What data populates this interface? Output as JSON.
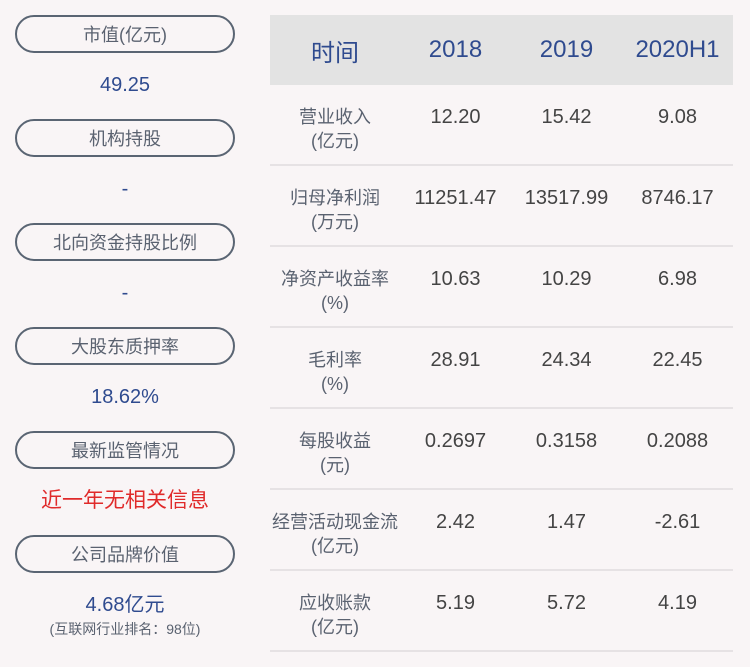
{
  "left_panel": {
    "stats": [
      {
        "label": "市值(亿元)",
        "value": "49.25"
      },
      {
        "label": "机构持股",
        "value": "-"
      },
      {
        "label": "北向资金持股比例",
        "value": "-"
      },
      {
        "label": "大股东质押率",
        "value": "18.62%"
      },
      {
        "label": "最新监管情况",
        "value": "近一年无相关信息"
      },
      {
        "label": "公司品牌价值",
        "value": "4.68亿元",
        "note": "(互联网行业排名：98位)"
      }
    ]
  },
  "table": {
    "headers": [
      "时间",
      "2018",
      "2019",
      "2020H1"
    ],
    "rows": [
      {
        "label": "营业收入",
        "unit": "(亿元)",
        "values": [
          "12.20",
          "15.42",
          "9.08"
        ]
      },
      {
        "label": "归母净利润",
        "unit": "(万元)",
        "values": [
          "11251.47",
          "13517.99",
          "8746.17"
        ]
      },
      {
        "label": "净资产收益率",
        "unit": "(%)",
        "values": [
          "10.63",
          "10.29",
          "6.98"
        ]
      },
      {
        "label": "毛利率",
        "unit": "(%)",
        "values": [
          "28.91",
          "24.34",
          "22.45"
        ]
      },
      {
        "label": "每股收益",
        "unit": "(元)",
        "values": [
          "0.2697",
          "0.3158",
          "0.2088"
        ]
      },
      {
        "label": "经营活动现金流",
        "unit": "(亿元)",
        "values": [
          "2.42",
          "1.47",
          "-2.61"
        ]
      },
      {
        "label": "应收账款",
        "unit": "(亿元)",
        "values": [
          "5.19",
          "5.72",
          "4.19"
        ]
      }
    ]
  },
  "colors": {
    "accent_blue": "#2f4b8f",
    "alert_red": "#e02a2a",
    "pill_border": "#5a6573",
    "header_bg": "#e3e3e3",
    "page_bg": "#f9f5f6"
  }
}
